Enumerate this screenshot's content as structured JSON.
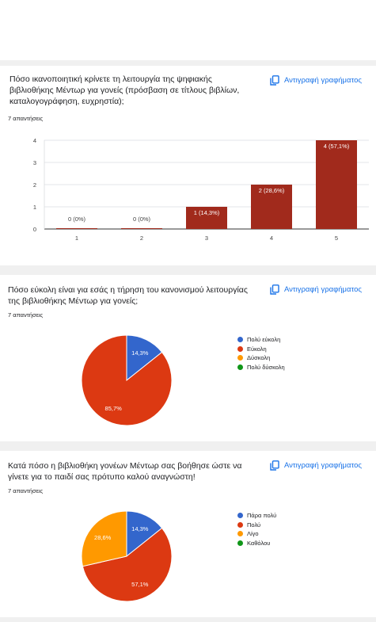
{
  "copy_label": "Αντιγραφή γραφήματος",
  "colors": {
    "bar": "#a12a1c",
    "blue": "#3366cc",
    "red": "#dc3912",
    "orange": "#ff9900",
    "green": "#109618",
    "link": "#1a73e8"
  },
  "card1": {
    "title_lines": [
      "Πόσο ικανοποιητική κρίνετε τη λειτουργία της ψηφιακής",
      "βιβλιοθήκης Μέντωρ για γονείς (πρόσβαση σε τίτλους βιβλίων,",
      "καταλογογράφηση, ευχρηστία);"
    ],
    "responses": "7 απαντήσεις"
  },
  "card2": {
    "title_lines": [
      "Πόσο εύκολη είναι για εσάς η τήρηση του κανονισμού λειτουργίας",
      "της βιβλιοθήκης Μέντωρ για γονείς;"
    ],
    "responses": "7 απαντήσεις"
  },
  "card3": {
    "title_lines": [
      "Κατά πόσο η βιβλιοθήκη γονέων Μέντωρ σας βοήθησε ώστε να",
      "γίνετε για το παιδί σας πρότυπο καλού αναγνώστη!"
    ],
    "responses": "7 απαντήσεις"
  },
  "chart_data": [
    {
      "type": "bar",
      "categories": [
        "1",
        "2",
        "3",
        "4",
        "5"
      ],
      "values": [
        0,
        0,
        1,
        2,
        4
      ],
      "data_labels": [
        "0 (0%)",
        "0 (0%)",
        "1 (14,3%)",
        "2 (28,6%)",
        "4 (57,1%)"
      ],
      "yticks": [
        "0",
        "1",
        "2",
        "3",
        "4"
      ],
      "ylim": [
        0,
        4
      ],
      "grid": true
    },
    {
      "type": "pie",
      "labels": [
        "Πολύ εύκολη",
        "Εύκολη",
        "Δύσκολη",
        "Πολύ δύσκολη"
      ],
      "values": [
        1,
        6,
        0,
        0
      ],
      "slice_labels": [
        "14,3%",
        "85,7%",
        "",
        ""
      ],
      "legend": "right"
    },
    {
      "type": "pie",
      "labels": [
        "Πάρα πολύ",
        "Πολύ",
        "Λίγο",
        "Καθόλου"
      ],
      "values": [
        1,
        4,
        2,
        0
      ],
      "slice_labels": [
        "14,3%",
        "57,1%",
        "28,6%",
        ""
      ],
      "legend": "right"
    }
  ]
}
